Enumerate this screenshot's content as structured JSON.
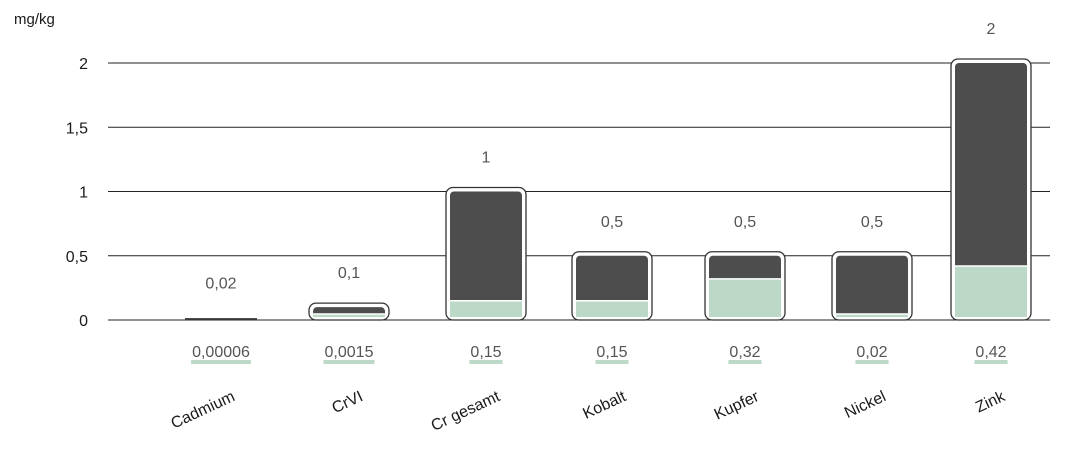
{
  "chart_data": {
    "type": "bar",
    "y_unit_label": "mg/kg",
    "yticks": [
      "0",
      "0,5",
      "1",
      "1,5",
      "2"
    ],
    "ylim": [
      0,
      2
    ],
    "grid": true,
    "categories": [
      "Cadmium",
      "CrVI",
      "Cr gesamt",
      "Kobalt",
      "Kupfer",
      "Nickel",
      "Zink"
    ],
    "series": [
      {
        "values": [
          0.02,
          0.1,
          1,
          0.5,
          0.5,
          0.5,
          2
        ]
      },
      {
        "values": [
          6e-05,
          0.0015,
          0.15,
          0.15,
          0.32,
          0.02,
          0.42
        ]
      }
    ],
    "limit_labels": [
      "0,02",
      "0,1",
      "1",
      "0,5",
      "0,5",
      "0,5",
      "2"
    ],
    "measured_labels": [
      "0,00006",
      "0,0015",
      "0,15",
      "0,15",
      "0,32",
      "0,02",
      "0,42"
    ],
    "colors": {
      "limit_fill": "#4d4d4d",
      "measured_fill": "#bcd9c8",
      "outline": "#333333",
      "underline": "#bcd9c8"
    }
  }
}
